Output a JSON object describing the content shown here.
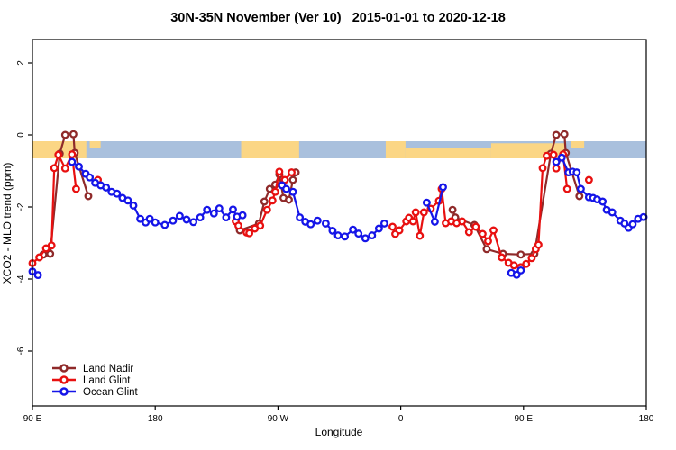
{
  "chart_data": {
    "type": "line",
    "title": "30N-35N November (Ver 10)   2015-01-01 to 2020-12-18",
    "xlabel": "Longitude",
    "ylabel": "XCO2 - MLO trend (ppm)",
    "x_axis": {
      "note": "longitude wraps around the globe: 90E -> 180 -> 90W -> 0 -> 90E -> 180",
      "tick_positions": [
        90,
        180,
        270,
        360,
        450,
        540
      ],
      "tick_labels": [
        "90 E",
        "180",
        "90 W",
        "0",
        "90 E",
        "180"
      ],
      "range": [
        90,
        540
      ]
    },
    "y_axis": {
      "tick_values": [
        2,
        0,
        -2,
        -4,
        -6
      ],
      "tick_labels": [
        "2",
        "0",
        "-2",
        "-4",
        "-6"
      ],
      "range": [
        -7.5,
        2.65
      ]
    },
    "map_band": {
      "description": "land/ocean map strip along the 30N-35N latitude belt",
      "ocean_color": "#a9c0dd",
      "land_color": "#fbd685",
      "ppm_top": -0.175,
      "ppm_bottom": -0.65,
      "land_segments": [
        {
          "from": 90,
          "to": 129.5,
          "coverage": "full"
        },
        {
          "from": 132,
          "to": 140,
          "coverage": "top"
        },
        {
          "from": 243,
          "to": 285.5,
          "coverage": "full"
        },
        {
          "from": 349,
          "to": 363.5,
          "coverage": "full"
        },
        {
          "from": 363.5,
          "to": 426.3,
          "coverage": "bottom"
        },
        {
          "from": 426.3,
          "to": 481.2,
          "coverage": "most"
        },
        {
          "from": 485,
          "to": 494.5,
          "coverage": "top"
        }
      ]
    },
    "series": [
      {
        "name": "Land Nadir",
        "color": "#8f2a2a",
        "segments": [
          [
            [
              98,
              -3.32
            ],
            [
              103,
              -3.3
            ],
            [
              110,
              -0.52
            ],
            [
              114,
              0.0
            ],
            [
              120,
              0.02
            ],
            [
              121,
              -0.5
            ],
            [
              131,
              -1.7
            ]
          ],
          [
            [
              242,
              -2.65
            ],
            [
              256,
              -2.46
            ],
            [
              260,
              -1.85
            ],
            [
              264,
              -1.5
            ],
            [
              268,
              -1.38
            ],
            [
              271,
              -1.1
            ],
            [
              274,
              -1.75
            ],
            [
              278,
              -1.8
            ],
            [
              281,
              -1.25
            ],
            [
              283,
              -1.04
            ]
          ],
          [
            [
              398,
              -2.08
            ],
            [
              400,
              -2.29
            ],
            [
              414,
              -2.5
            ],
            [
              423,
              -3.17
            ],
            [
              435,
              -3.3
            ],
            [
              448,
              -3.32
            ],
            [
              458,
              -3.3
            ],
            [
              470,
              -0.52
            ],
            [
              474,
              0.0
            ],
            [
              480,
              0.02
            ],
            [
              481,
              -0.5
            ],
            [
              491,
              -1.7
            ]
          ]
        ]
      },
      {
        "name": "Land Glint",
        "color": "#e81010",
        "segments": [
          [
            [
              90,
              -3.56
            ],
            [
              95,
              -3.4
            ],
            [
              100,
              -3.15
            ],
            [
              104,
              -3.07
            ],
            [
              106,
              -0.92
            ],
            [
              109,
              -0.55
            ],
            [
              114,
              -0.93
            ],
            [
              119,
              -0.54
            ],
            [
              122,
              -1.5
            ]
          ],
          [
            [
              138,
              -1.25
            ]
          ],
          [
            [
              239,
              -2.4
            ],
            [
              241,
              -2.52
            ],
            [
              247,
              -2.71
            ],
            [
              249,
              -2.73
            ],
            [
              253,
              -2.6
            ],
            [
              257,
              -2.52
            ],
            [
              262,
              -2.08
            ],
            [
              266,
              -1.82
            ],
            [
              268,
              -1.58
            ],
            [
              271,
              -1.02
            ],
            [
              275,
              -1.25
            ],
            [
              280,
              -1.04
            ]
          ],
          [
            [
              354,
              -2.55
            ],
            [
              356,
              -2.75
            ],
            [
              359,
              -2.65
            ],
            [
              364,
              -2.4
            ],
            [
              366,
              -2.3
            ],
            [
              369,
              -2.4
            ],
            [
              371,
              -2.15
            ],
            [
              374,
              -2.8
            ],
            [
              377,
              -2.15
            ],
            [
              382,
              -2.05
            ],
            [
              388,
              -1.83
            ],
            [
              390,
              -1.5
            ],
            [
              393,
              -2.45
            ],
            [
              397,
              -2.4
            ],
            [
              401,
              -2.45
            ],
            [
              405,
              -2.4
            ],
            [
              410,
              -2.7
            ],
            [
              415,
              -2.55
            ],
            [
              420,
              -2.75
            ],
            [
              424,
              -2.95
            ],
            [
              428,
              -2.65
            ],
            [
              434,
              -3.4
            ],
            [
              439,
              -3.55
            ],
            [
              443,
              -3.62
            ],
            [
              448,
              -3.67
            ],
            [
              452,
              -3.58
            ],
            [
              456,
              -3.42
            ],
            [
              459,
              -3.17
            ],
            [
              461,
              -3.05
            ],
            [
              464,
              -0.92
            ],
            [
              467,
              -0.58
            ],
            [
              472,
              -0.55
            ],
            [
              474,
              -0.93
            ],
            [
              479,
              -0.54
            ],
            [
              482,
              -1.5
            ]
          ],
          [
            [
              498,
              -1.25
            ]
          ]
        ]
      },
      {
        "name": "Ocean Glint",
        "color": "#1515e8",
        "segments": [
          [
            [
              90,
              -3.79
            ],
            [
              94,
              -3.89
            ]
          ],
          [
            [
              119,
              -0.75
            ],
            [
              124,
              -0.88
            ],
            [
              129,
              -1.08
            ],
            [
              132,
              -1.18
            ],
            [
              136,
              -1.33
            ],
            [
              140,
              -1.4
            ],
            [
              144,
              -1.46
            ],
            [
              148,
              -1.58
            ],
            [
              152,
              -1.63
            ],
            [
              156,
              -1.75
            ],
            [
              160,
              -1.82
            ],
            [
              164,
              -1.96
            ],
            [
              169,
              -2.33
            ],
            [
              173,
              -2.43
            ],
            [
              176,
              -2.33
            ],
            [
              180,
              -2.43
            ],
            [
              187,
              -2.5
            ],
            [
              193,
              -2.38
            ],
            [
              198,
              -2.25
            ],
            [
              203,
              -2.35
            ],
            [
              208,
              -2.42
            ],
            [
              213,
              -2.29
            ],
            [
              218,
              -2.08
            ],
            [
              223,
              -2.18
            ],
            [
              227,
              -2.04
            ],
            [
              232,
              -2.29
            ],
            [
              237,
              -2.07
            ],
            [
              240,
              -2.27
            ],
            [
              244,
              -2.23
            ]
          ],
          [
            [
              273,
              -1.4
            ],
            [
              276,
              -1.5
            ],
            [
              281,
              -1.58
            ],
            [
              286,
              -2.29
            ],
            [
              290,
              -2.41
            ],
            [
              294,
              -2.48
            ],
            [
              299,
              -2.38
            ]
          ],
          [
            [
              305,
              -2.46
            ],
            [
              310,
              -2.66
            ],
            [
              314,
              -2.79
            ],
            [
              319,
              -2.82
            ],
            [
              325,
              -2.63
            ],
            [
              329,
              -2.74
            ],
            [
              334,
              -2.87
            ],
            [
              339,
              -2.79
            ],
            [
              344,
              -2.6
            ],
            [
              348,
              -2.46
            ]
          ],
          [
            [
              379,
              -1.88
            ],
            [
              385,
              -2.41
            ],
            [
              391,
              -1.45
            ]
          ],
          [
            [
              441,
              -3.83
            ],
            [
              445,
              -3.88
            ],
            [
              448,
              -3.76
            ]
          ],
          [
            [
              474,
              -0.75
            ],
            [
              478,
              -0.63
            ],
            [
              483,
              -1.04
            ],
            [
              486,
              -1.02
            ],
            [
              489,
              -1.04
            ],
            [
              492,
              -1.5
            ],
            [
              498,
              -1.73
            ],
            [
              501,
              -1.75
            ],
            [
              504,
              -1.79
            ],
            [
              508,
              -1.85
            ],
            [
              511,
              -2.08
            ],
            [
              515,
              -2.15
            ],
            [
              521,
              -2.38
            ],
            [
              524,
              -2.46
            ],
            [
              527,
              -2.58
            ],
            [
              530,
              -2.48
            ],
            [
              534,
              -2.33
            ],
            [
              538,
              -2.28
            ]
          ]
        ]
      }
    ],
    "legend": {
      "position": "bottom-left",
      "items": [
        "Land Nadir",
        "Land Glint",
        "Ocean Glint"
      ]
    }
  }
}
